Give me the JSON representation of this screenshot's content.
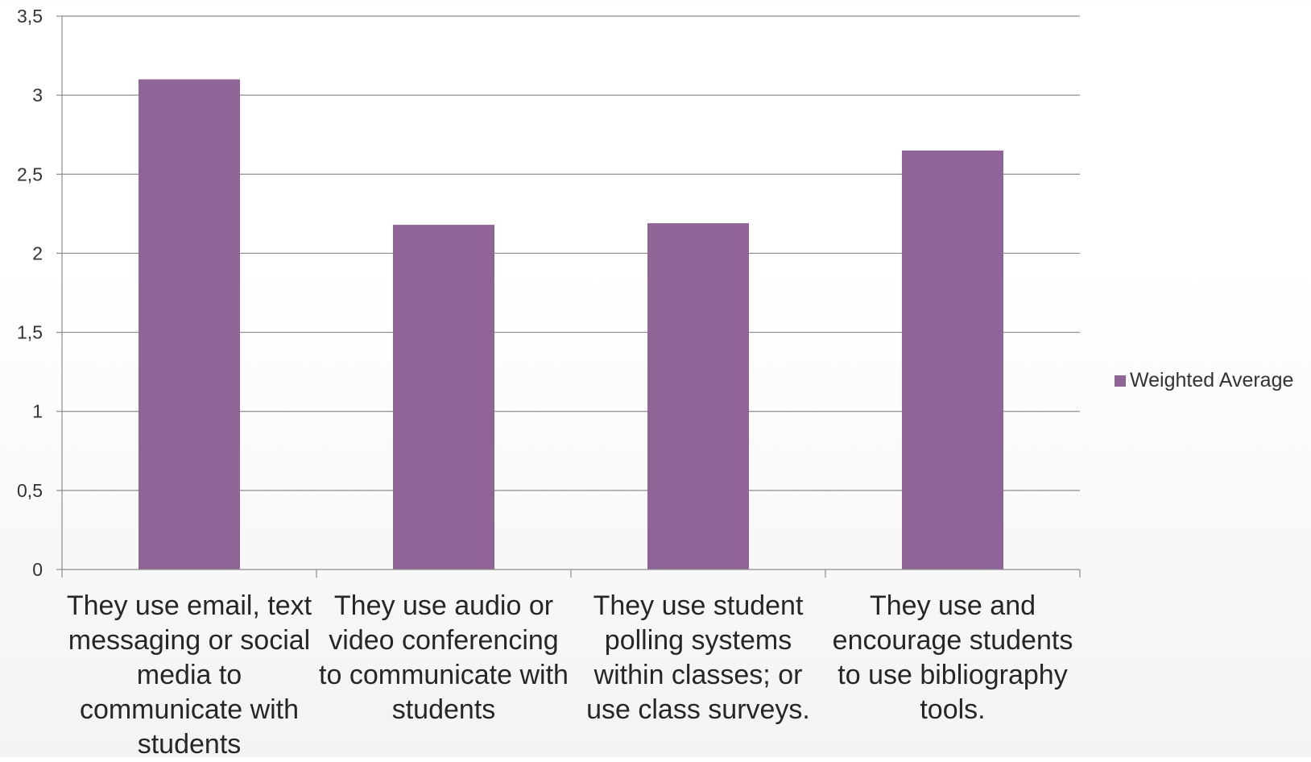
{
  "chart_data": {
    "type": "bar",
    "categories": [
      "They use email, text messaging or social media to communicate with students",
      "They use audio or video conferencing to communicate with students",
      "They use student polling systems within classes; or use class surveys.",
      "They use and encourage students to use bibliography tools."
    ],
    "series": [
      {
        "name": "Weighted Average",
        "values": [
          3.1,
          2.18,
          2.19,
          2.65
        ],
        "color": "#8f6496"
      }
    ],
    "ylim": [
      0,
      3.5
    ],
    "yticks": [
      "0",
      "0,5",
      "1",
      "1,5",
      "2",
      "2,5",
      "3",
      "3,5"
    ],
    "grid": true,
    "legend": "right"
  }
}
